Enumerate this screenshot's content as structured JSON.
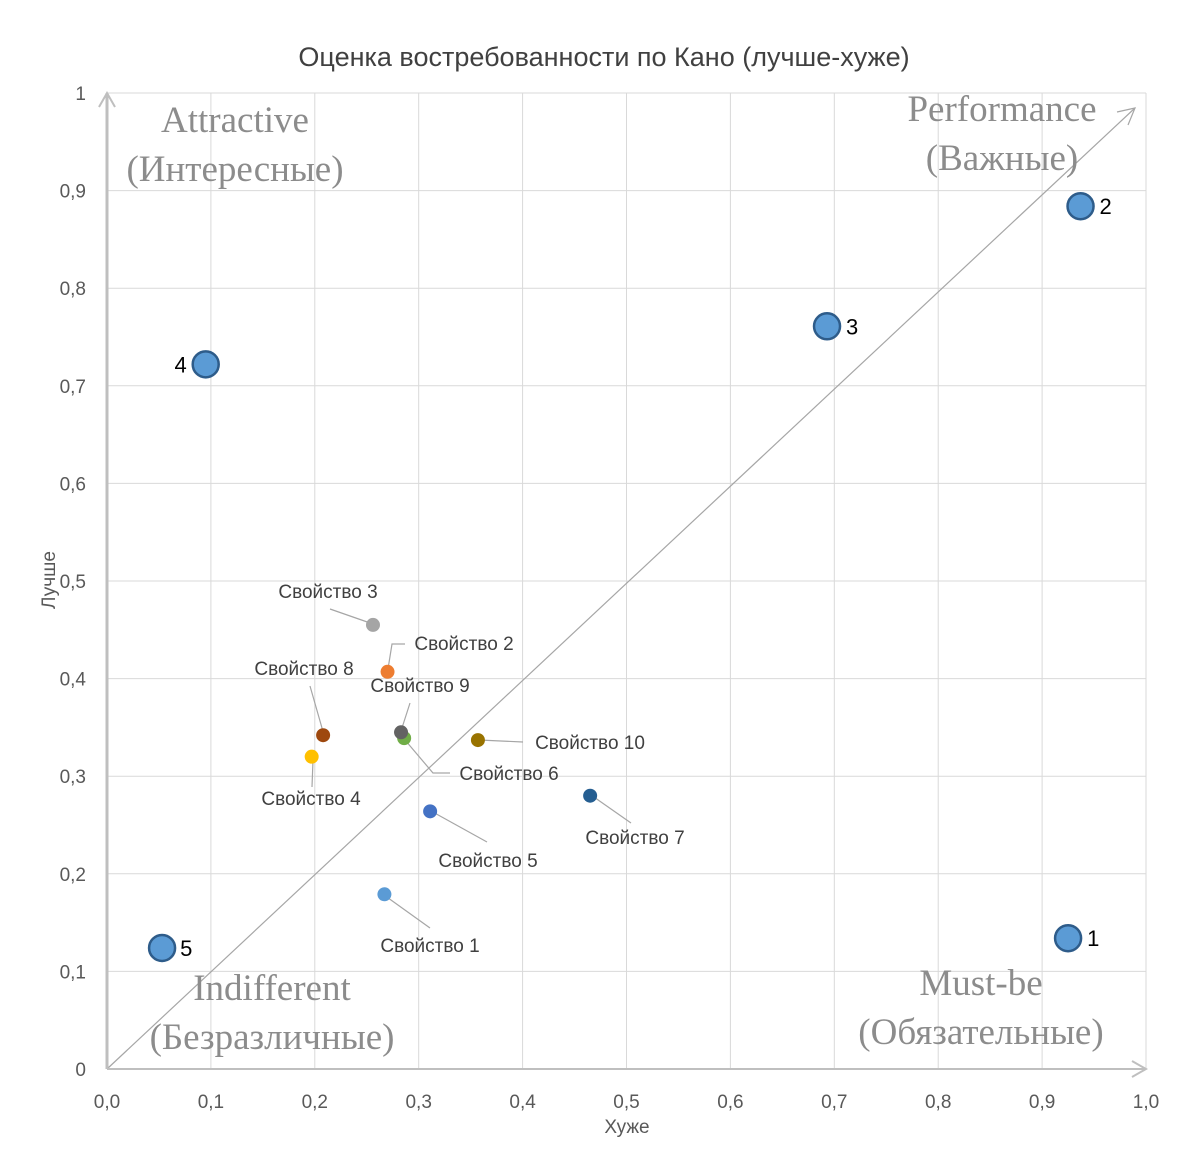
{
  "chart_data": {
    "type": "scatter",
    "title": "Оценка востребованности по Кано (лучше-хуже)",
    "xlabel": "Хуже",
    "ylabel": "Лучше",
    "xlim": [
      0,
      1
    ],
    "ylim": [
      0,
      1
    ],
    "x_ticks": [
      "0,0",
      "0,1",
      "0,2",
      "0,3",
      "0,4",
      "0,5",
      "0,6",
      "0,7",
      "0,8",
      "0,9",
      "1,0"
    ],
    "y_ticks": [
      "0",
      "0,1",
      "0,2",
      "0,3",
      "0,4",
      "0,5",
      "0,6",
      "0,7",
      "0,8",
      "0,9",
      "1"
    ],
    "grid": "on",
    "diagonal_line": true,
    "quadrants": {
      "top_left": [
        "Attractive",
        "(Интересные)"
      ],
      "top_right": [
        "Performance",
        "(Важные)"
      ],
      "bottom_left": [
        "Indifferent",
        "(Безразличные)"
      ],
      "bottom_right": [
        "Must-be",
        "(Обязательные)"
      ]
    },
    "reference_points": [
      {
        "label": "1",
        "x": 0.925,
        "y": 0.134,
        "color": "#5b9bd5"
      },
      {
        "label": "2",
        "x": 0.937,
        "y": 0.884,
        "color": "#5b9bd5"
      },
      {
        "label": "3",
        "x": 0.693,
        "y": 0.761,
        "color": "#5b9bd5"
      },
      {
        "label": "4",
        "x": 0.095,
        "y": 0.722,
        "color": "#5b9bd5"
      },
      {
        "label": "5",
        "x": 0.053,
        "y": 0.124,
        "color": "#5b9bd5"
      }
    ],
    "series": [
      {
        "name": "Свойство 1",
        "x": 0.267,
        "y": 0.179,
        "color": "#5b9bd5"
      },
      {
        "name": "Свойство 2",
        "x": 0.27,
        "y": 0.407,
        "color": "#ed7d31"
      },
      {
        "name": "Свойство 3",
        "x": 0.256,
        "y": 0.455,
        "color": "#a5a5a5"
      },
      {
        "name": "Свойство 4",
        "x": 0.197,
        "y": 0.32,
        "color": "#ffc000"
      },
      {
        "name": "Свойство 5",
        "x": 0.311,
        "y": 0.264,
        "color": "#4472c4"
      },
      {
        "name": "Свойство 6",
        "x": 0.286,
        "y": 0.339,
        "color": "#70ad47"
      },
      {
        "name": "Свойство 7",
        "x": 0.465,
        "y": 0.28,
        "color": "#255e91"
      },
      {
        "name": "Свойство 8",
        "x": 0.208,
        "y": 0.342,
        "color": "#9e480e"
      },
      {
        "name": "Свойство 9",
        "x": 0.283,
        "y": 0.345,
        "color": "#636363"
      },
      {
        "name": "Свойство 10",
        "x": 0.357,
        "y": 0.337,
        "color": "#997300"
      }
    ]
  }
}
